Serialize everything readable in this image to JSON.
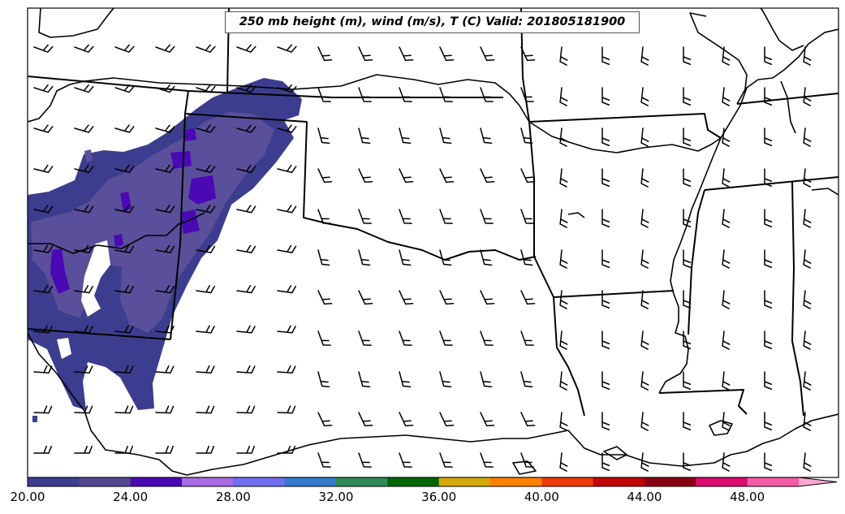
{
  "title": "250 mb height (m), wind (m/s), T (C) Valid: 201805181900",
  "colorbar": {
    "ticks": [
      "20.00",
      "24.00",
      "28.00",
      "32.00",
      "36.00",
      "40.00",
      "44.00",
      "48.00"
    ],
    "tick_values": [
      20,
      24,
      28,
      32,
      36,
      40,
      44,
      48
    ],
    "range": [
      20,
      52
    ],
    "step": 2,
    "extend": "max",
    "colors": [
      "#3d3d8f",
      "#55478f",
      "#4b08b5",
      "#a66be3",
      "#6f6ff0",
      "#337ac8",
      "#2e8b57",
      "#046604",
      "#d3a90a",
      "#ff8000",
      "#ee3a0c",
      "#c10505",
      "#8c0014",
      "#db0b6e",
      "#f45ca8",
      "#ffa6d6"
    ]
  },
  "map": {
    "region": "South-central United States",
    "wind_barbs": "black",
    "borders": "black",
    "shading": "20-24 C band over west"
  }
}
